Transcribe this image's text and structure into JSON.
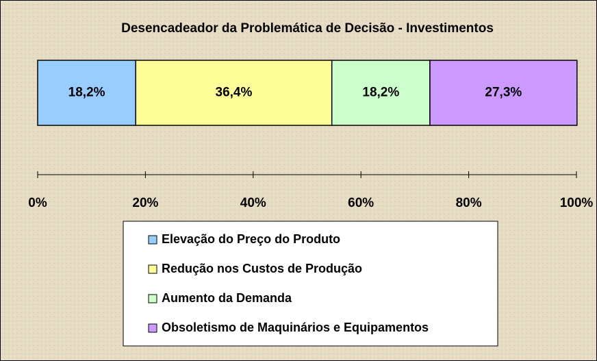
{
  "chart_data": {
    "type": "stacked_bar_horizontal",
    "title": "Desencadeador da Problemática de Decisão - Investimentos",
    "series": [
      {
        "name": "Elevação do Preço do Produto",
        "color": "#99ccff",
        "values": [
          18.2
        ],
        "value_labels": [
          "18,2%"
        ]
      },
      {
        "name": "Redução nos Custos de Produção",
        "color": "#ffff99",
        "values": [
          36.4
        ],
        "value_labels": [
          "36,4%"
        ]
      },
      {
        "name": "Aumento da Demanda",
        "color": "#ccffcc",
        "values": [
          18.2
        ],
        "value_labels": [
          "18,2%"
        ]
      },
      {
        "name": "Obsoletismo de Maquinários e Equipamentos",
        "color": "#cc99ff",
        "values": [
          27.3
        ],
        "value_labels": [
          "27,3%"
        ]
      }
    ],
    "xlim": [
      0,
      100
    ],
    "xticks": [
      {
        "value": 0,
        "label": "0%"
      },
      {
        "value": 20,
        "label": "20%"
      },
      {
        "value": 40,
        "label": "40%"
      },
      {
        "value": 60,
        "label": "60%"
      },
      {
        "value": 80,
        "label": "80%"
      },
      {
        "value": 100,
        "label": "100%"
      }
    ],
    "legend": "bottom"
  }
}
